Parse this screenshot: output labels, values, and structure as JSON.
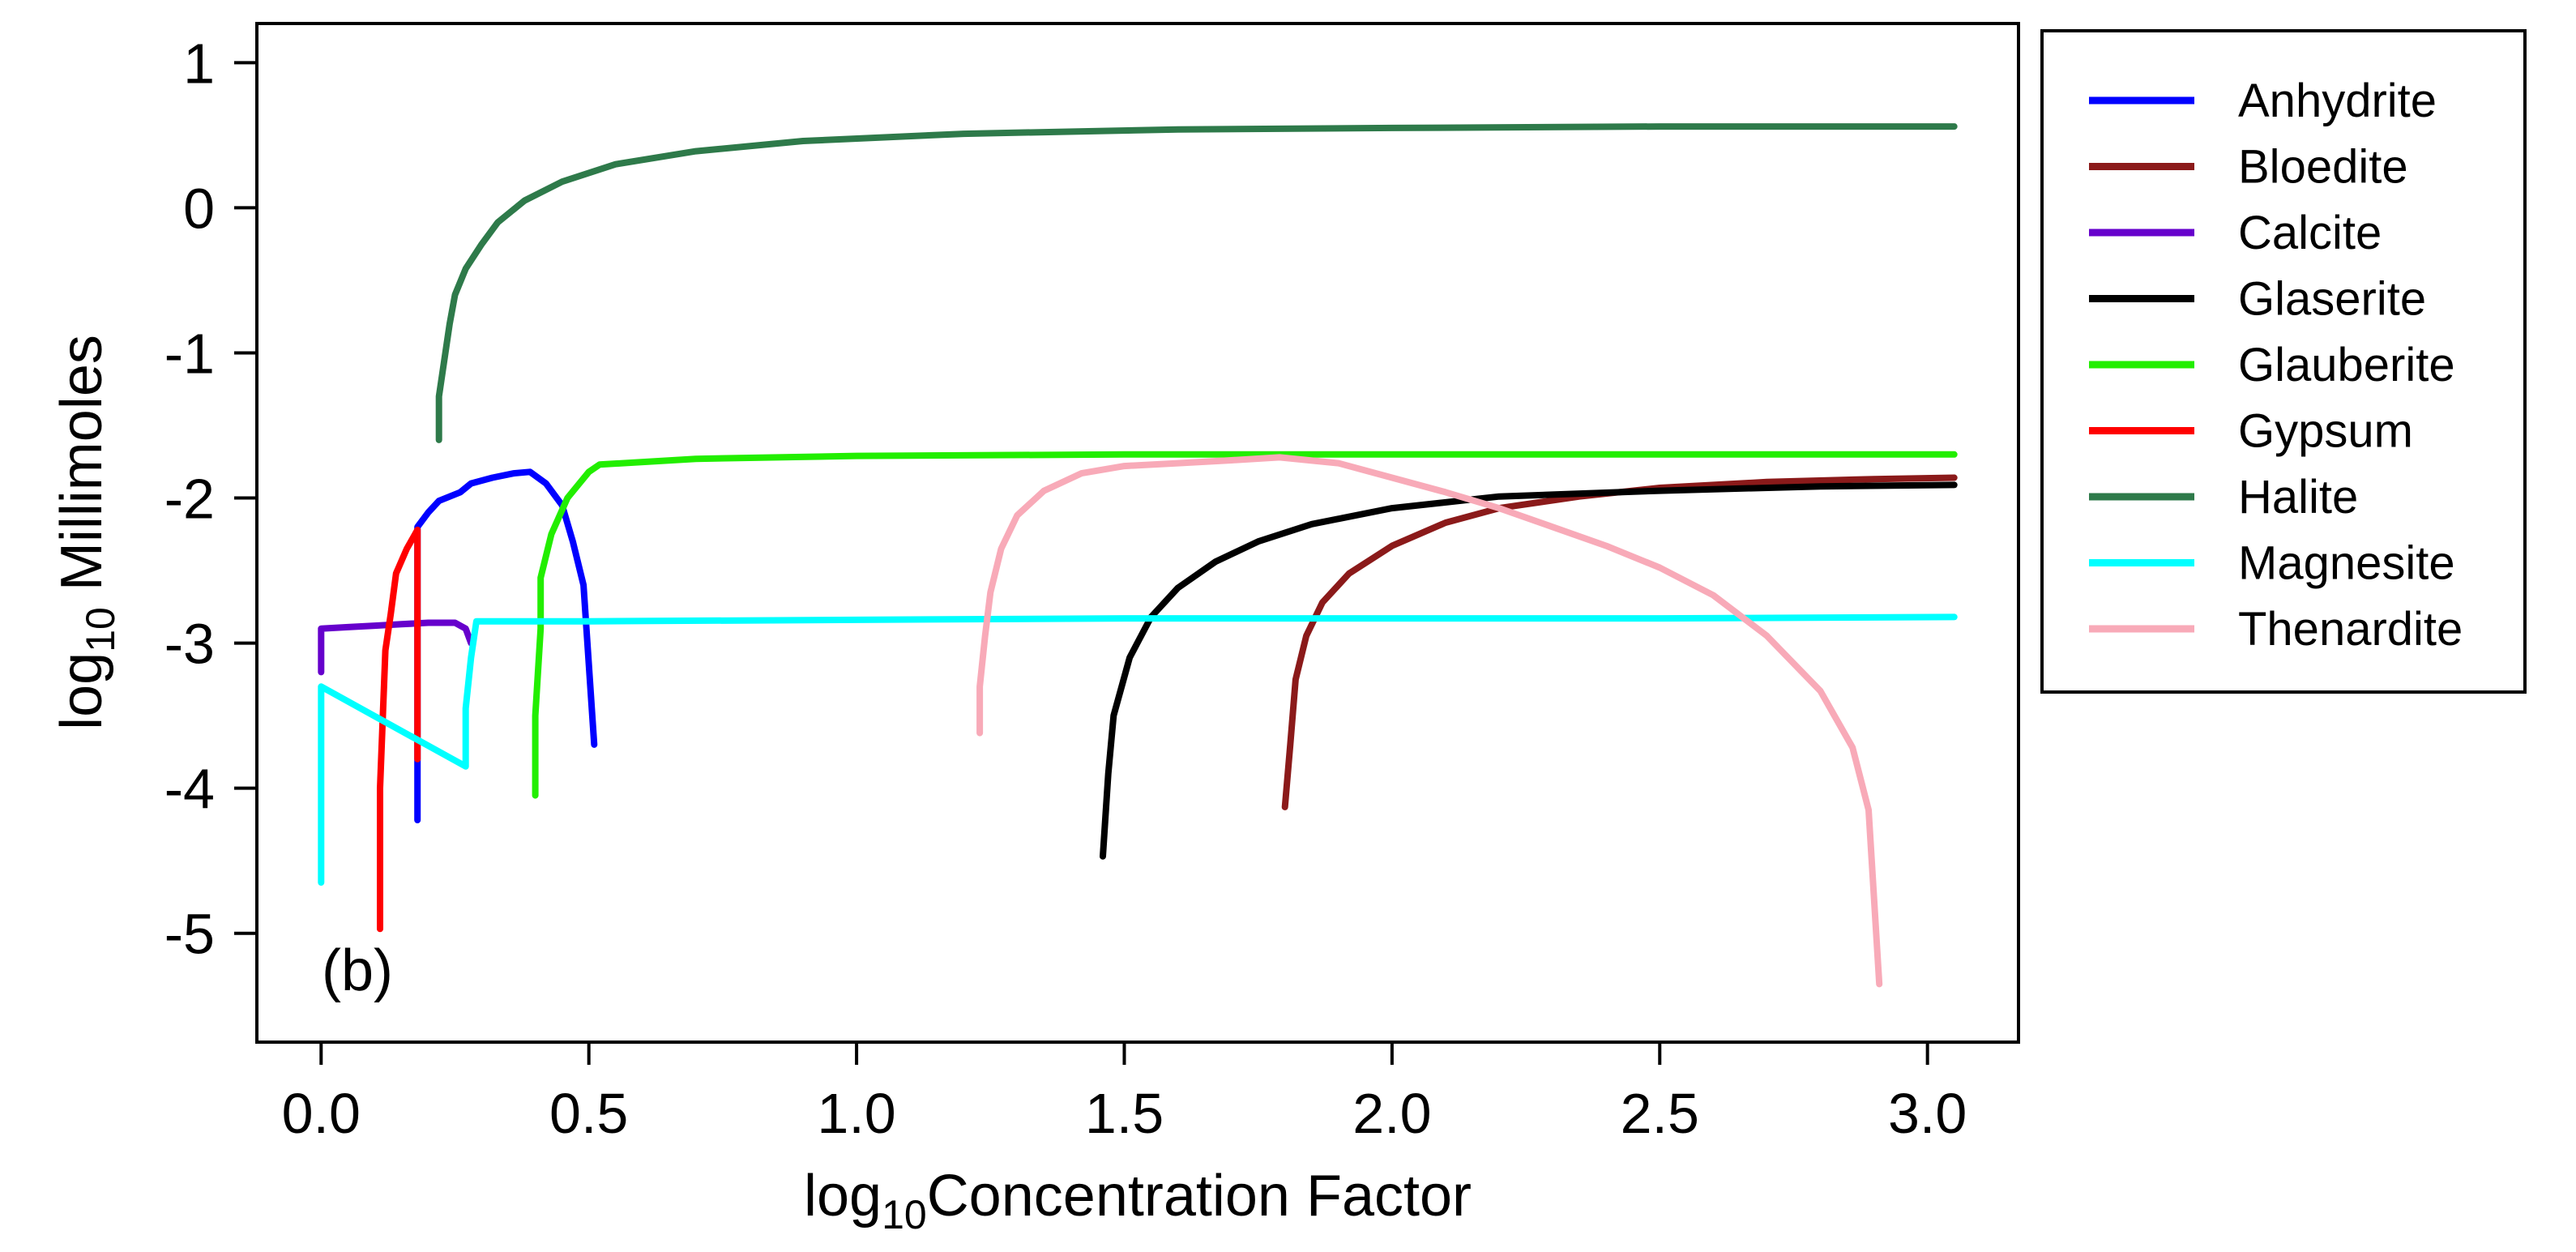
{
  "chart_data": {
    "type": "line",
    "title": "",
    "panel_label": "(b)",
    "xlabel": {
      "prefix": "log",
      "sub": "10",
      "main": "Concentration Factor"
    },
    "ylabel": {
      "prefix": "log",
      "sub": "10",
      "main": " Millimoles"
    },
    "xlim": [
      -0.12,
      3.17
    ],
    "ylim": [
      -5.75,
      1.27
    ],
    "xticks": [
      0.0,
      0.5,
      1.0,
      1.5,
      2.0,
      2.5,
      3.0
    ],
    "xtick_labels": [
      "0.0",
      "0.5",
      "1.0",
      "1.5",
      "2.0",
      "2.5",
      "3.0"
    ],
    "yticks": [
      1,
      0,
      -1,
      -2,
      -3,
      -4,
      -5
    ],
    "ytick_labels": [
      "1",
      "0",
      "-1",
      "-2",
      "-3",
      "-4",
      "-5"
    ],
    "grid": false,
    "legend_position": "right",
    "series": [
      {
        "name": "Anhydrite",
        "color": "#0000FF",
        "points": [
          [
            0.18,
            -4.22
          ],
          [
            0.18,
            -3.8
          ],
          [
            0.18,
            -2.2
          ],
          [
            0.2,
            -2.1
          ],
          [
            0.22,
            -2.02
          ],
          [
            0.26,
            -1.96
          ],
          [
            0.28,
            -1.9
          ],
          [
            0.32,
            -1.86
          ],
          [
            0.36,
            -1.83
          ],
          [
            0.39,
            -1.82
          ],
          [
            0.42,
            -1.9
          ],
          [
            0.45,
            -2.05
          ],
          [
            0.47,
            -2.3
          ],
          [
            0.49,
            -2.6
          ],
          [
            0.51,
            -3.7
          ]
        ]
      },
      {
        "name": "Bloedite",
        "color": "#8B1A1A",
        "points": [
          [
            1.8,
            -4.13
          ],
          [
            1.81,
            -3.7
          ],
          [
            1.82,
            -3.25
          ],
          [
            1.84,
            -2.95
          ],
          [
            1.87,
            -2.72
          ],
          [
            1.92,
            -2.52
          ],
          [
            2.0,
            -2.33
          ],
          [
            2.1,
            -2.17
          ],
          [
            2.2,
            -2.07
          ],
          [
            2.35,
            -1.99
          ],
          [
            2.5,
            -1.93
          ],
          [
            2.7,
            -1.89
          ],
          [
            2.9,
            -1.87
          ],
          [
            3.05,
            -1.86
          ]
        ]
      },
      {
        "name": "Calcite",
        "color": "#6600CC",
        "points": [
          [
            0.0,
            -3.2
          ],
          [
            0.0,
            -2.9
          ],
          [
            0.05,
            -2.89
          ],
          [
            0.1,
            -2.88
          ],
          [
            0.15,
            -2.87
          ],
          [
            0.2,
            -2.86
          ],
          [
            0.25,
            -2.86
          ],
          [
            0.27,
            -2.9
          ],
          [
            0.28,
            -3.0
          ]
        ]
      },
      {
        "name": "Glaserite",
        "color": "#000000",
        "points": [
          [
            1.46,
            -4.47
          ],
          [
            1.47,
            -3.9
          ],
          [
            1.48,
            -3.5
          ],
          [
            1.51,
            -3.1
          ],
          [
            1.55,
            -2.82
          ],
          [
            1.6,
            -2.62
          ],
          [
            1.67,
            -2.44
          ],
          [
            1.75,
            -2.3
          ],
          [
            1.85,
            -2.18
          ],
          [
            2.0,
            -2.07
          ],
          [
            2.2,
            -1.99
          ],
          [
            2.5,
            -1.95
          ],
          [
            2.8,
            -1.92
          ],
          [
            3.05,
            -1.91
          ]
        ]
      },
      {
        "name": "Glauberite",
        "color": "#22EE00",
        "points": [
          [
            0.4,
            -4.05
          ],
          [
            0.4,
            -3.5
          ],
          [
            0.41,
            -2.9
          ],
          [
            0.41,
            -2.55
          ],
          [
            0.43,
            -2.25
          ],
          [
            0.46,
            -2.0
          ],
          [
            0.5,
            -1.82
          ],
          [
            0.52,
            -1.77
          ],
          [
            0.7,
            -1.73
          ],
          [
            1.0,
            -1.71
          ],
          [
            1.5,
            -1.7
          ],
          [
            2.0,
            -1.7
          ],
          [
            2.5,
            -1.7
          ],
          [
            3.05,
            -1.7
          ]
        ]
      },
      {
        "name": "Gypsum",
        "color": "#FF0000",
        "points": [
          [
            0.11,
            -4.97
          ],
          [
            0.11,
            -4.0
          ],
          [
            0.12,
            -3.05
          ],
          [
            0.13,
            -2.8
          ],
          [
            0.14,
            -2.52
          ],
          [
            0.16,
            -2.35
          ],
          [
            0.18,
            -2.22
          ],
          [
            0.18,
            -2.5
          ],
          [
            0.18,
            -3.8
          ]
        ]
      },
      {
        "name": "Halite",
        "color": "#2E7A4A",
        "points": [
          [
            0.22,
            -1.6
          ],
          [
            0.22,
            -1.3
          ],
          [
            0.23,
            -1.05
          ],
          [
            0.24,
            -0.8
          ],
          [
            0.25,
            -0.6
          ],
          [
            0.27,
            -0.42
          ],
          [
            0.3,
            -0.25
          ],
          [
            0.33,
            -0.1
          ],
          [
            0.38,
            0.05
          ],
          [
            0.45,
            0.18
          ],
          [
            0.55,
            0.3
          ],
          [
            0.7,
            0.39
          ],
          [
            0.9,
            0.46
          ],
          [
            1.2,
            0.51
          ],
          [
            1.6,
            0.54
          ],
          [
            2.0,
            0.55
          ],
          [
            2.5,
            0.56
          ],
          [
            3.05,
            0.56
          ]
        ]
      },
      {
        "name": "Magnesite",
        "color": "#00FFFF",
        "points": [
          [
            0.0,
            -4.65
          ],
          [
            0.0,
            -4.2
          ],
          [
            0.0,
            -3.3
          ],
          [
            0.27,
            -3.85
          ],
          [
            0.27,
            -3.45
          ],
          [
            0.28,
            -3.1
          ],
          [
            0.29,
            -2.85
          ],
          [
            0.5,
            -2.85
          ],
          [
            1.0,
            -2.84
          ],
          [
            1.5,
            -2.83
          ],
          [
            2.0,
            -2.83
          ],
          [
            2.5,
            -2.83
          ],
          [
            3.05,
            -2.82
          ]
        ]
      },
      {
        "name": "Thenardite",
        "color": "#F8AAB8",
        "points": [
          [
            1.23,
            -3.62
          ],
          [
            1.23,
            -3.3
          ],
          [
            1.24,
            -2.95
          ],
          [
            1.25,
            -2.65
          ],
          [
            1.27,
            -2.35
          ],
          [
            1.3,
            -2.12
          ],
          [
            1.35,
            -1.95
          ],
          [
            1.42,
            -1.83
          ],
          [
            1.5,
            -1.78
          ],
          [
            1.6,
            -1.76
          ],
          [
            1.7,
            -1.74
          ],
          [
            1.79,
            -1.72
          ],
          [
            1.9,
            -1.76
          ],
          [
            2.0,
            -1.86
          ],
          [
            2.1,
            -1.96
          ],
          [
            2.2,
            -2.07
          ],
          [
            2.3,
            -2.2
          ],
          [
            2.4,
            -2.33
          ],
          [
            2.5,
            -2.48
          ],
          [
            2.6,
            -2.67
          ],
          [
            2.7,
            -2.95
          ],
          [
            2.8,
            -3.33
          ],
          [
            2.86,
            -3.72
          ],
          [
            2.89,
            -4.15
          ],
          [
            2.9,
            -4.75
          ],
          [
            2.91,
            -5.35
          ]
        ]
      }
    ]
  }
}
